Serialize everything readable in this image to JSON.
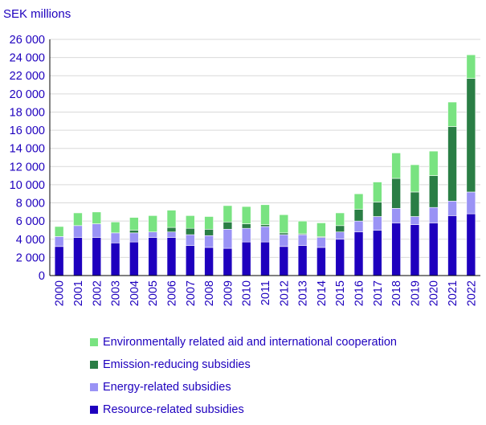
{
  "chart_data": {
    "type": "bar",
    "stacked": true,
    "title": "",
    "ylabel": "SEK millions",
    "xlabel": "",
    "ylim": [
      0,
      26000
    ],
    "yticks": [
      0,
      2000,
      4000,
      6000,
      8000,
      10000,
      12000,
      14000,
      16000,
      18000,
      20000,
      22000,
      24000,
      26000
    ],
    "ytick_labels": [
      "0",
      "2 000",
      "4 000",
      "6 000",
      "8 000",
      "10 000",
      "12 000",
      "14 000",
      "16 000",
      "18 000",
      "20 000",
      "22 000",
      "24 000",
      "26 000"
    ],
    "categories": [
      "2000",
      "2001",
      "2002",
      "2003",
      "2004",
      "2005",
      "2006",
      "2007",
      "2008",
      "2009",
      "2010",
      "2011",
      "2012",
      "2013",
      "2014",
      "2015",
      "2016",
      "2017",
      "2018",
      "2019",
      "2020",
      "2021",
      "2022"
    ],
    "series": [
      {
        "name": "Resource-related subsidies",
        "color": "#1e00be",
        "values": [
          3200,
          4200,
          4200,
          3600,
          3700,
          4200,
          4200,
          3300,
          3100,
          3000,
          3700,
          3700,
          3200,
          3300,
          3100,
          4000,
          4800,
          5000,
          5800,
          5600,
          5800,
          6600,
          6800
        ]
      },
      {
        "name": "Energy-related subsidies",
        "color": "#9a93f5",
        "values": [
          1100,
          1300,
          1500,
          1100,
          1000,
          600,
          600,
          1200,
          1300,
          2100,
          1500,
          1700,
          1300,
          1200,
          1100,
          800,
          1200,
          1500,
          1600,
          900,
          1700,
          1600,
          2400
        ]
      },
      {
        "name": "Emission-reducing subsidies",
        "color": "#2a7e45",
        "values": [
          0,
          0,
          0,
          0,
          300,
          0,
          500,
          700,
          700,
          800,
          500,
          200,
          200,
          100,
          100,
          700,
          1300,
          1600,
          3300,
          2700,
          3500,
          8200,
          12500
        ]
      },
      {
        "name": "Environmentally related aid and international cooperation",
        "color": "#79e381",
        "values": [
          1100,
          1400,
          1300,
          1200,
          1400,
          1800,
          1900,
          1400,
          1400,
          1800,
          1900,
          2200,
          2000,
          1400,
          1500,
          1400,
          1700,
          2200,
          2800,
          3000,
          2700,
          2700,
          2600
        ]
      }
    ],
    "legend_position": "bottom",
    "legend_order": [
      3,
      2,
      1,
      0
    ],
    "colors": {
      "text": "#1e00be",
      "axis": "#000000",
      "grid": "#d9d9d9",
      "bar_stroke": "#ffffff"
    }
  }
}
